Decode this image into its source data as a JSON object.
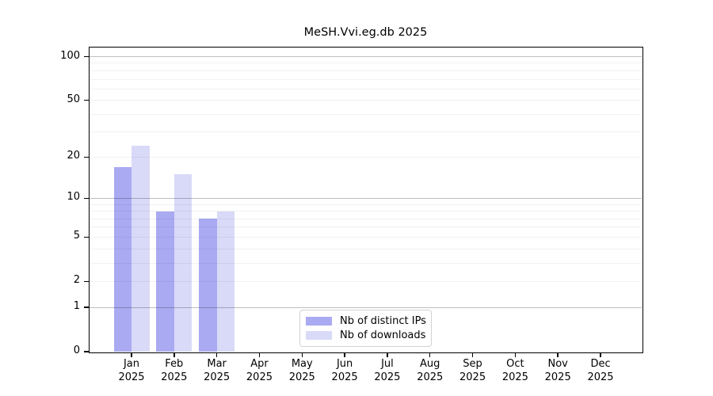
{
  "chart_data": {
    "type": "bar",
    "title": "MeSH.Vvi.eg.db 2025",
    "categories": [
      "Jan",
      "Feb",
      "Mar",
      "Apr",
      "May",
      "Jun",
      "Jul",
      "Aug",
      "Sep",
      "Oct",
      "Nov",
      "Dec"
    ],
    "x_tick_year": "2025",
    "series": [
      {
        "name": "Nb of distinct IPs",
        "color": "#aaaaf2",
        "values": [
          17,
          8,
          7,
          0,
          0,
          0,
          0,
          0,
          0,
          0,
          0,
          0
        ]
      },
      {
        "name": "Nb of downloads",
        "color": "#d9d9f8",
        "values": [
          24,
          15,
          8,
          0,
          0,
          0,
          0,
          0,
          0,
          0,
          0,
          0
        ]
      }
    ],
    "yscale": "log1p",
    "ylim": [
      0,
      116
    ],
    "y_ticks": [
      0,
      1,
      2,
      5,
      10,
      20,
      50,
      100
    ],
    "grid_major": [
      1,
      10,
      100
    ],
    "grid_minor": [
      2,
      3,
      4,
      5,
      6,
      7,
      8,
      9,
      20,
      30,
      40,
      50,
      60,
      70,
      80,
      90
    ],
    "grid": true,
    "legend_position": "bottom-center",
    "colors": {
      "axis": "#000000",
      "grid_major": "rgba(0,0,0,0.25)",
      "grid_minor": "rgba(0,0,0,0.055)",
      "background": "#ffffff"
    }
  }
}
